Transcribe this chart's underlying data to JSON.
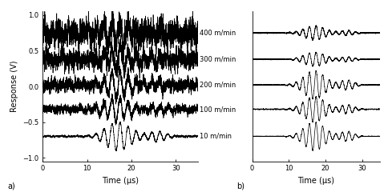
{
  "figsize": [
    4.84,
    2.4
  ],
  "dpi": 100,
  "xlim": [
    0,
    35
  ],
  "ylim": [
    -1.05,
    1.05
  ],
  "yticks_a": [
    -1,
    -0.5,
    0,
    0.5,
    1
  ],
  "xticks": [
    0,
    10,
    20,
    30
  ],
  "xlabel": "Time (μs)",
  "ylabel": "Response (V)",
  "label_a": "a)",
  "label_b": "b)",
  "speeds": [
    "400 m/min",
    "300 m/min",
    "200 m/min",
    "100 m/min",
    "10 m/min"
  ],
  "offsets_a": [
    0.75,
    0.38,
    0.02,
    -0.32,
    -0.7
  ],
  "offsets_b": [
    0.75,
    0.38,
    0.02,
    -0.32,
    -0.7
  ],
  "color": "black",
  "linewidth": 0.5,
  "seed": 7
}
